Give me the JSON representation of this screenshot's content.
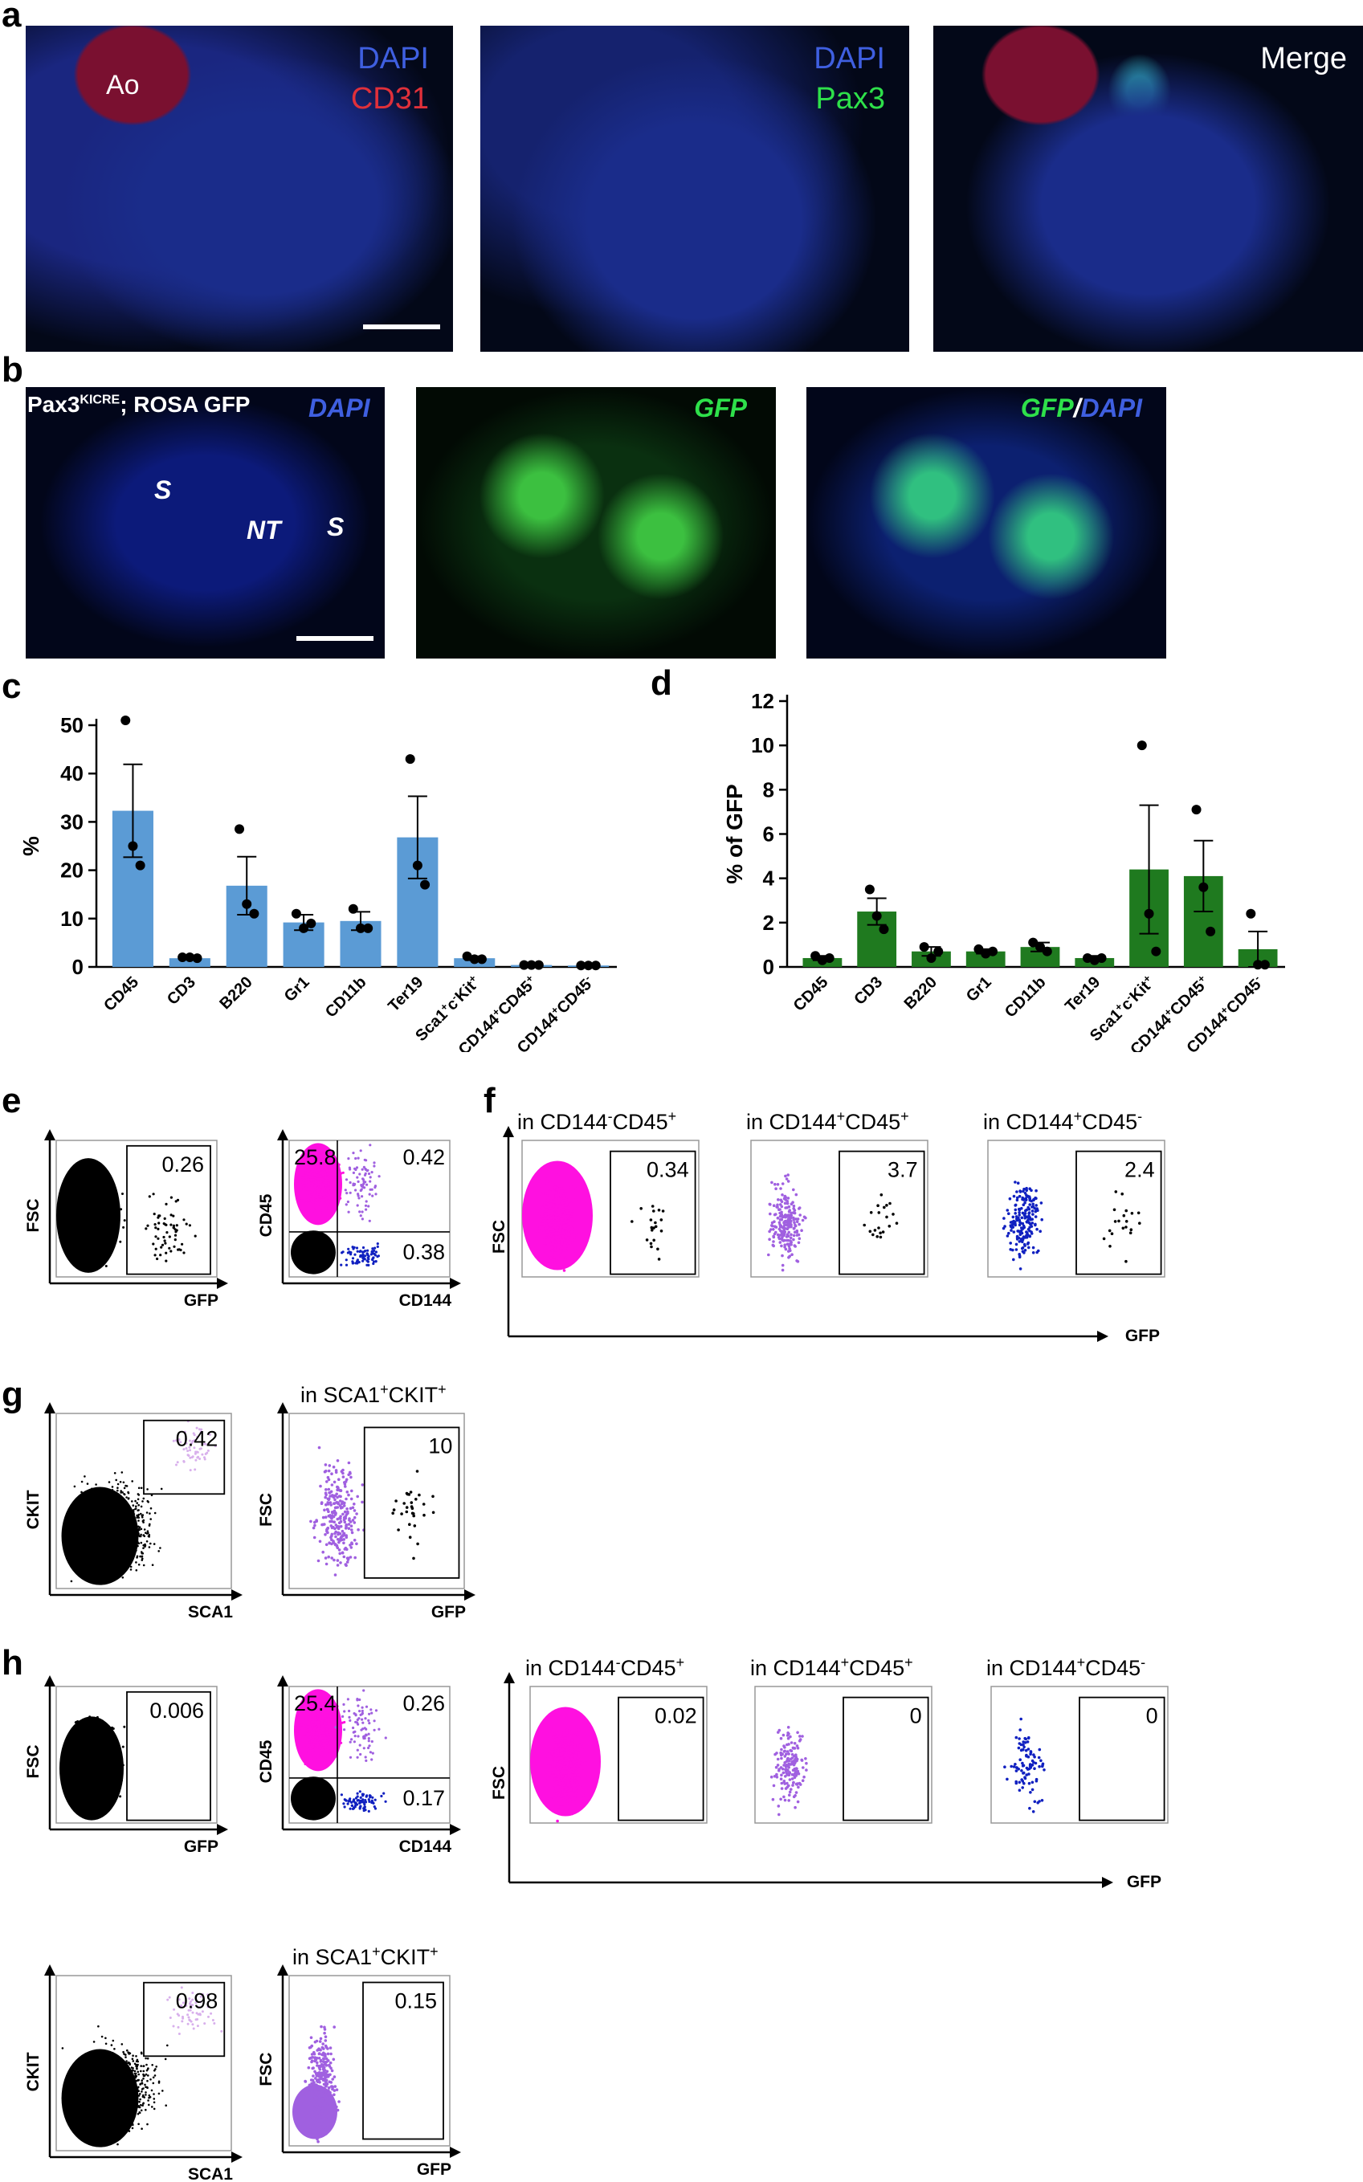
{
  "panels": {
    "a": {
      "label": "a",
      "images": [
        {
          "l1": "DAPI",
          "l2": "CD31",
          "tag": "Ao"
        },
        {
          "l1": "DAPI",
          "l2": "Pax3"
        },
        {
          "l1": "Merge"
        }
      ]
    },
    "b": {
      "label": "b",
      "title_main": "Pax3",
      "title_sup": "KICRE",
      "title_rest": "; ROSA GFP",
      "dapi": "DAPI",
      "gfp": "GFP",
      "gfp_dapi_1": "GFP",
      "slash": "/",
      "gfp_dapi_2": "DAPI",
      "tag_s1": "S",
      "tag_nt": "NT",
      "tag_s2": "S"
    },
    "c": {
      "label": "c"
    },
    "d": {
      "label": "d"
    },
    "e": {
      "label": "e"
    },
    "f": {
      "label": "f"
    },
    "g": {
      "label": "g"
    },
    "h": {
      "label": "h"
    }
  },
  "chart_data": [
    {
      "panel": "c",
      "type": "bar",
      "ylabel": "%",
      "ylim": [
        0,
        50
      ],
      "yticks": [
        "0",
        "10",
        "20",
        "30",
        "40",
        "50"
      ],
      "categories": [
        "CD45",
        "CD3",
        "B220",
        "Gr1",
        "CD11b",
        "Ter19",
        "Sca1+c-Kit+",
        "CD144+CD45+",
        "CD144+CD45-"
      ],
      "values": [
        32.3,
        1.8,
        16.8,
        9.2,
        9.5,
        26.8,
        1.8,
        0.4,
        0.3
      ],
      "errors": [
        9.6,
        0.3,
        6.0,
        1.6,
        1.9,
        8.5,
        0.4,
        0.1,
        0.1
      ],
      "points": [
        [
          51,
          25,
          21
        ],
        [
          2,
          2,
          1.8
        ],
        [
          28.5,
          13,
          11
        ],
        [
          11,
          8,
          9
        ],
        [
          12,
          8,
          8
        ],
        [
          43,
          21,
          17
        ],
        [
          2.2,
          1.6,
          1.6
        ],
        [
          0.4,
          0.4,
          0.4
        ],
        [
          0.3,
          0.3,
          0.3
        ]
      ],
      "color": "#5b9bd5"
    },
    {
      "panel": "d",
      "type": "bar",
      "ylabel": "% of GFP",
      "ylim": [
        0,
        12
      ],
      "yticks": [
        "0",
        "2",
        "4",
        "6",
        "8",
        "10",
        "12"
      ],
      "categories": [
        "CD45",
        "CD3",
        "B220",
        "Gr1",
        "CD11b",
        "Ter19",
        "Sca1+c-Kit+",
        "CD144+CD45+",
        "CD144+CD45-"
      ],
      "values": [
        0.4,
        2.5,
        0.7,
        0.7,
        0.9,
        0.4,
        4.4,
        4.1,
        0.8
      ],
      "errors": [
        0.1,
        0.6,
        0.2,
        0.1,
        0.2,
        0.1,
        2.9,
        1.6,
        0.8
      ],
      "points": [
        [
          0.5,
          0.3,
          0.4
        ],
        [
          3.5,
          2.3,
          1.7
        ],
        [
          0.9,
          0.4,
          0.7
        ],
        [
          0.8,
          0.6,
          0.7
        ],
        [
          1.1,
          0.9,
          0.7
        ],
        [
          0.4,
          0.3,
          0.4
        ],
        [
          10,
          2.4,
          0.7
        ],
        [
          7.1,
          3.6,
          1.6
        ],
        [
          2.4,
          0.1,
          0.1
        ]
      ],
      "color": "#1f7a1f"
    }
  ],
  "flow": {
    "e1": {
      "gate": "0.26",
      "ylabel": "FSC",
      "xlabel": "GFP"
    },
    "e2": {
      "q1": "25.8",
      "q2": "0.42",
      "q4": "0.38",
      "ylabel": "CD45",
      "xlabel": "CD144"
    },
    "f_titles": [
      {
        "pre": "in CD144",
        "s1": "-",
        "mid": "CD45",
        "s2": "+"
      },
      {
        "pre": "in CD144",
        "s1": "+",
        "mid": "CD45",
        "s2": "+"
      },
      {
        "pre": "in CD144",
        "s1": "+",
        "mid": "CD45",
        "s2": "-"
      }
    ],
    "f_gates": [
      "0.34",
      "3.7",
      "2.4"
    ],
    "f_ylabel": "FSC",
    "f_xlabel": "GFP",
    "g1": {
      "gate": "0.42",
      "ylabel": "CKIT",
      "xlabel": "SCA1"
    },
    "g2": {
      "title_pre": "in SCA1",
      "s1": "+",
      "title_mid": "CKIT",
      "s2": "+",
      "gate": "10",
      "ylabel": "FSC",
      "xlabel": "GFP"
    },
    "h1": {
      "gate": "0.006",
      "ylabel": "FSC",
      "xlabel": "GFP"
    },
    "h2": {
      "q1": "25.4",
      "q2": "0.26",
      "q4": "0.17",
      "ylabel": "CD45",
      "xlabel": "CD144"
    },
    "h_gates": [
      "0.02",
      "0",
      "0"
    ],
    "h3": {
      "gate": "0.98",
      "ylabel": "CKIT",
      "xlabel": "SCA1"
    },
    "h4": {
      "gate": "0.15",
      "ylabel": "FSC",
      "xlabel": "GFP"
    }
  },
  "colors": {
    "bar_c": "#5b9bd5",
    "bar_d": "#1f7a1f",
    "magenta": "#ff10e0",
    "lavender": "#a060e0",
    "navy": "#1020c0"
  }
}
